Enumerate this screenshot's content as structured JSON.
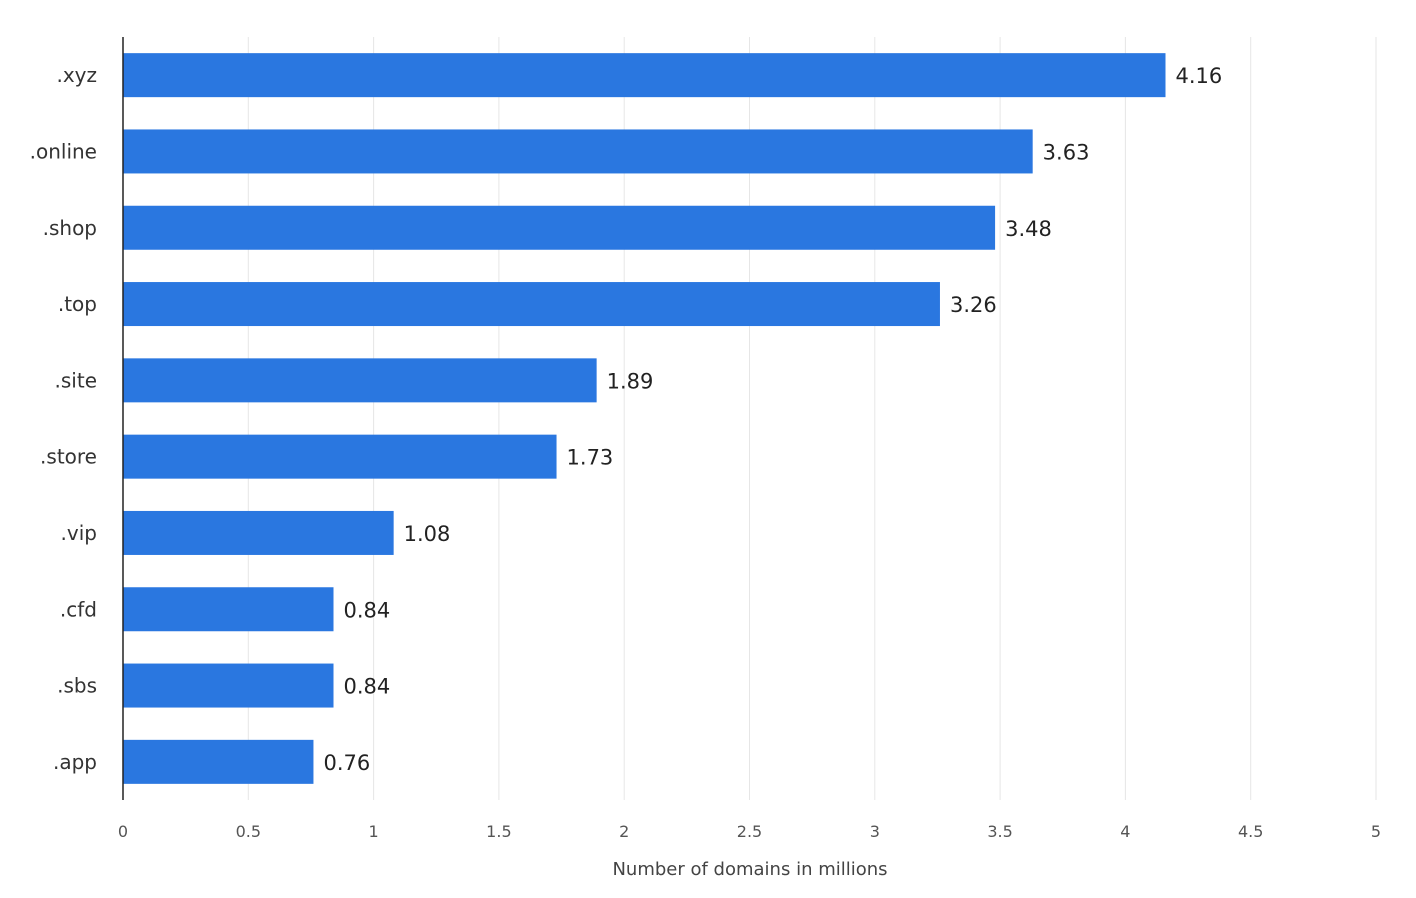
{
  "chart_data": {
    "type": "bar",
    "orientation": "horizontal",
    "categories": [
      ".xyz",
      ".online",
      ".shop",
      ".top",
      ".site",
      ".store",
      ".vip",
      ".cfd",
      ".sbs",
      ".app"
    ],
    "values": [
      4.16,
      3.63,
      3.48,
      3.26,
      1.89,
      1.73,
      1.08,
      0.84,
      0.84,
      0.76
    ],
    "value_labels": [
      "4.16",
      "3.63",
      "3.48",
      "3.26",
      "1.89",
      "1.73",
      "1.08",
      "0.84",
      "0.84",
      "0.76"
    ],
    "xlabel": "Number of domains in millions",
    "ylabel": "",
    "xlim": [
      0,
      5
    ],
    "xticks": [
      "0",
      "0.5",
      "1",
      "1.5",
      "2",
      "2.5",
      "3",
      "3.5",
      "4",
      "4.5",
      "5"
    ],
    "grid": true,
    "bar_color": "#2a77e0"
  }
}
